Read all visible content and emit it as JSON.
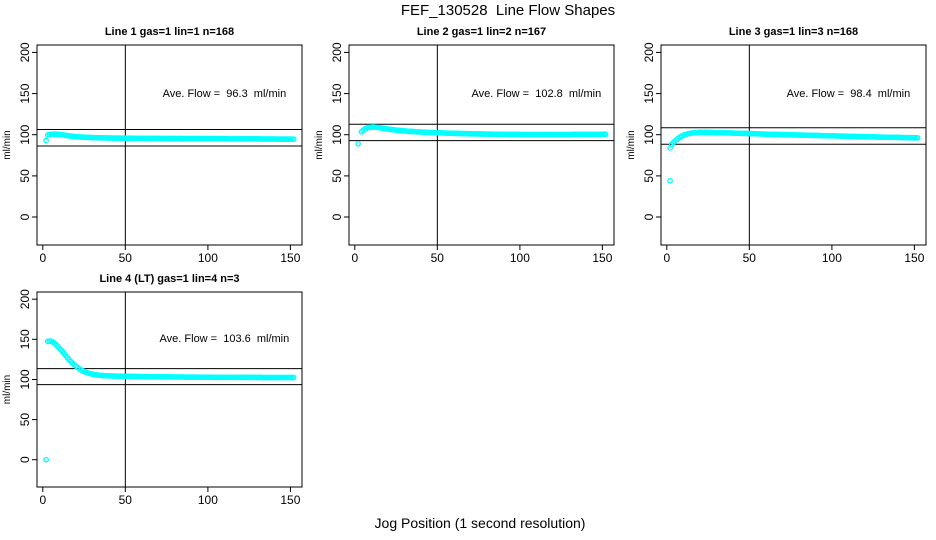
{
  "page": {
    "title": "FEF_130528  Line Flow Shapes",
    "xlabel": "Jog Position (1 second resolution)"
  },
  "colors": {
    "marker": "#00FFFF",
    "axis": "#000000",
    "background": "#FFFFFF"
  },
  "chart_data": [
    {
      "type": "scatter",
      "title": "Line 1 gas=1 lin=1 n=168",
      "gas": 1,
      "lin": 1,
      "n": 168,
      "ave_flow_ml_min": 96.3,
      "annotation": "Ave. Flow =  96.3  ml/min",
      "ylabel": "ml/min",
      "xticks": [
        0,
        50,
        100,
        150
      ],
      "yticks": [
        0,
        50,
        100,
        150,
        200
      ],
      "xlim": [
        -3.5,
        157
      ],
      "ylim": [
        -34,
        209
      ],
      "vline_x": 50,
      "hlines": [
        106.3,
        86.3
      ],
      "annotation_pos": [
        110,
        150
      ],
      "marker": "open-circle",
      "x_step": 1,
      "profile": [
        [
          3,
          99.5
        ],
        [
          5,
          100.5
        ],
        [
          8,
          100.8
        ],
        [
          12,
          99.8
        ],
        [
          16,
          98.6
        ],
        [
          20,
          97.6
        ],
        [
          25,
          97
        ],
        [
          30,
          96.5
        ],
        [
          40,
          96
        ],
        [
          50,
          95.8
        ],
        [
          60,
          95.6
        ],
        [
          75,
          95.4
        ],
        [
          90,
          95.3
        ],
        [
          105,
          95.2
        ],
        [
          120,
          95
        ],
        [
          135,
          94.8
        ],
        [
          152,
          94.6
        ]
      ],
      "outliers": [
        [
          2,
          93
        ]
      ]
    },
    {
      "type": "scatter",
      "title": "Line 2 gas=1 lin=2 n=167",
      "gas": 1,
      "lin": 2,
      "n": 167,
      "ave_flow_ml_min": 102.8,
      "annotation": "Ave. Flow =  102.8  ml/min",
      "ylabel": "ml/min",
      "xticks": [
        0,
        50,
        100,
        150
      ],
      "yticks": [
        0,
        50,
        100,
        150,
        200
      ],
      "xlim": [
        -3.5,
        157
      ],
      "ylim": [
        -34,
        209
      ],
      "vline_x": 50,
      "hlines": [
        112.8,
        92.8
      ],
      "annotation_pos": [
        110,
        150
      ],
      "marker": "open-circle",
      "x_step": 1,
      "profile": [
        [
          4,
          103.5
        ],
        [
          6,
          107
        ],
        [
          8,
          108.8
        ],
        [
          11,
          109.4
        ],
        [
          14,
          108.8
        ],
        [
          18,
          107.6
        ],
        [
          22,
          106.4
        ],
        [
          26,
          105.4
        ],
        [
          30,
          104.6
        ],
        [
          35,
          103.9
        ],
        [
          40,
          103.3
        ],
        [
          45,
          102.8
        ],
        [
          50,
          102.4
        ],
        [
          55,
          102
        ],
        [
          60,
          101.7
        ],
        [
          70,
          101.2
        ],
        [
          80,
          100.8
        ],
        [
          90,
          100.5
        ],
        [
          100,
          100.3
        ],
        [
          115,
          100.2
        ],
        [
          130,
          100.3
        ],
        [
          140,
          100.4
        ],
        [
          152,
          100.6
        ]
      ],
      "outliers": [
        [
          2,
          89
        ]
      ]
    },
    {
      "type": "scatter",
      "title": "Line 3 gas=1 lin=3 n=168",
      "gas": 1,
      "lin": 3,
      "n": 168,
      "ave_flow_ml_min": 98.4,
      "annotation": "Ave. Flow =  98.4  ml/min",
      "ylabel": "ml/min",
      "xticks": [
        0,
        50,
        100,
        150
      ],
      "yticks": [
        0,
        50,
        100,
        150,
        200
      ],
      "xlim": [
        -3.5,
        157
      ],
      "ylim": [
        -34,
        209
      ],
      "vline_x": 50,
      "hlines": [
        108.4,
        88.4
      ],
      "annotation_pos": [
        110,
        150
      ],
      "marker": "open-circle",
      "x_step": 1,
      "profile": [
        [
          3,
          88.5
        ],
        [
          4,
          90.5
        ],
        [
          6,
          94
        ],
        [
          8,
          97
        ],
        [
          10,
          99.3
        ],
        [
          13,
          101.3
        ],
        [
          16,
          102.3
        ],
        [
          20,
          102.8
        ],
        [
          25,
          102.8
        ],
        [
          30,
          102.5
        ],
        [
          40,
          102
        ],
        [
          50,
          101.4
        ],
        [
          60,
          100.7
        ],
        [
          70,
          100.2
        ],
        [
          80,
          99.6
        ],
        [
          90,
          99.1
        ],
        [
          100,
          98.6
        ],
        [
          110,
          98.1
        ],
        [
          120,
          97.6
        ],
        [
          130,
          97.1
        ],
        [
          140,
          96.7
        ],
        [
          152,
          96.2
        ]
      ],
      "outliers": [
        [
          2,
          84
        ],
        [
          2,
          44
        ]
      ]
    },
    {
      "type": "scatter",
      "title": "Line 4 (LT) gas=1 lin=4 n=3",
      "gas": 1,
      "lin": 4,
      "n": 3,
      "ave_flow_ml_min": 103.6,
      "annotation": "Ave. Flow =  103.6  ml/min",
      "ylabel": "ml/min",
      "xticks": [
        0,
        50,
        100,
        150
      ],
      "yticks": [
        0,
        50,
        100,
        150,
        200
      ],
      "xlim": [
        -3.5,
        157
      ],
      "ylim": [
        -34,
        209
      ],
      "vline_x": 50,
      "hlines": [
        113.6,
        93.6
      ],
      "annotation_pos": [
        110,
        150
      ],
      "marker": "open-circle",
      "x_step": 1,
      "profile": [
        [
          3,
          147.5
        ],
        [
          5,
          147.8
        ],
        [
          7,
          145.5
        ],
        [
          9,
          141.5
        ],
        [
          11,
          137
        ],
        [
          13,
          132
        ],
        [
          15,
          127
        ],
        [
          17,
          122.5
        ],
        [
          19,
          118.5
        ],
        [
          21,
          115
        ],
        [
          23,
          112
        ],
        [
          25,
          109.8
        ],
        [
          28,
          107.6
        ],
        [
          31,
          106.2
        ],
        [
          34,
          105.3
        ],
        [
          38,
          104.7
        ],
        [
          44,
          104.2
        ],
        [
          52,
          103.9
        ],
        [
          65,
          103.4
        ],
        [
          80,
          103.1
        ],
        [
          100,
          102.8
        ],
        [
          120,
          102.6
        ],
        [
          135,
          102.5
        ],
        [
          152,
          102.5
        ]
      ],
      "outliers": [
        [
          2,
          0
        ]
      ]
    }
  ]
}
